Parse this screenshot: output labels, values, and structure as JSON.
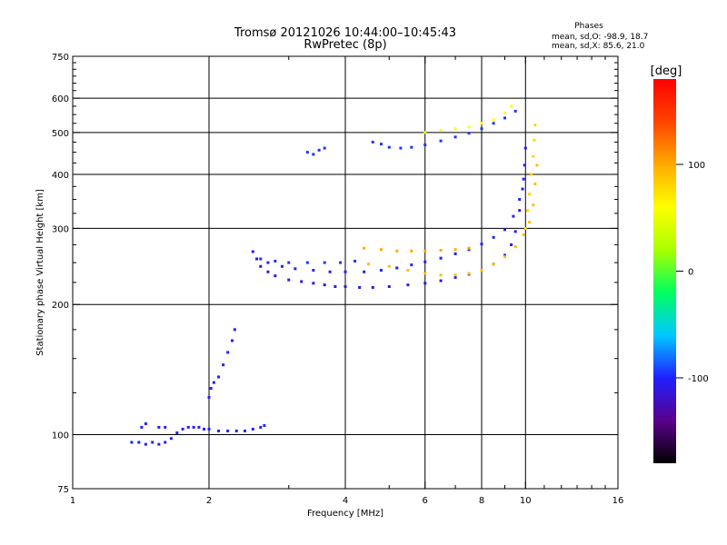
{
  "chart_data": {
    "type": "scatter",
    "title": "Tromsø 20121026 10:44:00–10:45:43",
    "subtitle": "RwPretec (8p)",
    "xlabel": "Frequency [MHz]",
    "ylabel": "Stationary phase Virtual Height [km]",
    "x_scale": "log",
    "y_scale": "log",
    "xlim": [
      1,
      16
    ],
    "ylim": [
      75,
      750
    ],
    "x_ticks": [
      1,
      2,
      4,
      6,
      8,
      10,
      16
    ],
    "x_tick_labels": [
      "1",
      "2",
      "4",
      "6",
      "8",
      "10",
      "16"
    ],
    "y_ticks": [
      75,
      100,
      200,
      300,
      400,
      500,
      600,
      750
    ],
    "y_tick_labels": [
      "75",
      "100",
      "200",
      "300",
      "400",
      "500",
      "600",
      "750"
    ],
    "grid": true,
    "grid_x": [
      2,
      4,
      6,
      8,
      10
    ],
    "grid_y": [
      100,
      200,
      300,
      400,
      500,
      600
    ],
    "phase_info": {
      "heading": "Phases",
      "line_o": "mean, sd,O: -98.9, 18.7",
      "line_x": "mean, sd,X:  85.6, 21.0"
    },
    "colorbar": {
      "label": "[deg]",
      "min": -180,
      "max": 180,
      "ticks": [
        100,
        0,
        -100
      ],
      "tick_labels": [
        "100",
        "0",
        "-100"
      ],
      "colormap": [
        "#000000",
        "#5a008c",
        "#2020ff",
        "#00c8ff",
        "#00ff60",
        "#aaff00",
        "#ffff00",
        "#ffaa00",
        "#ff4400",
        "#ff0000"
      ]
    },
    "series": [
      {
        "phase": -100,
        "points": [
          [
            1.35,
            96
          ],
          [
            1.4,
            96
          ],
          [
            1.45,
            95
          ],
          [
            1.5,
            96
          ],
          [
            1.55,
            95
          ],
          [
            1.6,
            96
          ],
          [
            1.65,
            98
          ],
          [
            1.7,
            101
          ],
          [
            1.75,
            103
          ],
          [
            1.8,
            104
          ],
          [
            1.85,
            104
          ],
          [
            1.9,
            104
          ],
          [
            1.95,
            103
          ],
          [
            2.0,
            103
          ],
          [
            2.1,
            102
          ],
          [
            2.2,
            102
          ],
          [
            2.3,
            102
          ],
          [
            2.4,
            102
          ],
          [
            2.5,
            103
          ],
          [
            2.6,
            104
          ],
          [
            2.65,
            105
          ],
          [
            1.42,
            104
          ],
          [
            1.45,
            106
          ],
          [
            1.55,
            104
          ],
          [
            1.6,
            104
          ]
        ]
      },
      {
        "phase": -100,
        "points": [
          [
            2.0,
            122
          ],
          [
            2.02,
            128
          ],
          [
            2.05,
            132
          ],
          [
            2.1,
            136
          ],
          [
            2.15,
            145
          ],
          [
            2.2,
            155
          ],
          [
            2.25,
            165
          ],
          [
            2.28,
            175
          ]
        ]
      },
      {
        "phase": -110,
        "points": [
          [
            2.5,
            265
          ],
          [
            2.55,
            255
          ],
          [
            2.6,
            245
          ],
          [
            2.7,
            238
          ],
          [
            2.8,
            233
          ],
          [
            3.0,
            228
          ],
          [
            3.2,
            226
          ],
          [
            3.4,
            224
          ],
          [
            3.6,
            222
          ],
          [
            3.8,
            220
          ],
          [
            4.0,
            220
          ],
          [
            4.3,
            219
          ],
          [
            4.6,
            219
          ],
          [
            5.0,
            220
          ],
          [
            5.5,
            222
          ],
          [
            6.0,
            224
          ],
          [
            6.5,
            227
          ],
          [
            7.0,
            231
          ],
          [
            7.5,
            235
          ],
          [
            8.0,
            240
          ],
          [
            8.5,
            248
          ],
          [
            9.0,
            260
          ],
          [
            9.3,
            275
          ],
          [
            9.5,
            295
          ],
          [
            9.7,
            330
          ],
          [
            9.85,
            370
          ],
          [
            9.95,
            420
          ],
          [
            10.0,
            460
          ]
        ]
      },
      {
        "phase": -100,
        "points": [
          [
            2.7,
            250
          ],
          [
            2.9,
            245
          ],
          [
            3.1,
            242
          ],
          [
            3.4,
            240
          ],
          [
            3.7,
            238
          ],
          [
            4.0,
            238
          ],
          [
            4.4,
            238
          ],
          [
            4.8,
            240
          ],
          [
            5.2,
            243
          ],
          [
            5.6,
            247
          ],
          [
            6.0,
            251
          ],
          [
            6.5,
            256
          ],
          [
            7.0,
            262
          ],
          [
            7.5,
            268
          ],
          [
            8.0,
            276
          ],
          [
            8.5,
            286
          ],
          [
            9.0,
            298
          ],
          [
            9.4,
            320
          ],
          [
            9.7,
            350
          ],
          [
            9.9,
            390
          ]
        ]
      },
      {
        "phase": -95,
        "points": [
          [
            2.6,
            255
          ],
          [
            2.8,
            252
          ],
          [
            3.0,
            250
          ],
          [
            3.3,
            250
          ],
          [
            3.6,
            250
          ],
          [
            3.9,
            250
          ],
          [
            4.2,
            252
          ]
        ]
      },
      {
        "phase": 100,
        "points": [
          [
            4.4,
            270
          ],
          [
            4.8,
            268
          ],
          [
            5.2,
            266
          ],
          [
            5.6,
            266
          ],
          [
            6.0,
            266
          ],
          [
            6.5,
            267
          ],
          [
            7.0,
            268
          ],
          [
            7.5,
            270
          ]
        ]
      },
      {
        "phase": 90,
        "points": [
          [
            4.5,
            248
          ],
          [
            5.0,
            245
          ],
          [
            5.5,
            240
          ],
          [
            6.0,
            236
          ],
          [
            6.5,
            234
          ],
          [
            7.0,
            234
          ],
          [
            7.5,
            236
          ],
          [
            8.0,
            240
          ],
          [
            8.5,
            248
          ],
          [
            9.0,
            258
          ],
          [
            9.5,
            272
          ],
          [
            9.9,
            290
          ],
          [
            10.2,
            310
          ],
          [
            10.4,
            340
          ],
          [
            10.5,
            380
          ],
          [
            10.6,
            420
          ]
        ]
      },
      {
        "phase": 80,
        "points": [
          [
            10.0,
            300
          ],
          [
            10.1,
            330
          ],
          [
            10.2,
            360
          ],
          [
            10.3,
            400
          ],
          [
            10.4,
            440
          ],
          [
            10.45,
            480
          ],
          [
            10.5,
            520
          ]
        ]
      },
      {
        "phase": -95,
        "points": [
          [
            3.3,
            450
          ],
          [
            3.4,
            445
          ],
          [
            3.5,
            455
          ],
          [
            3.6,
            460
          ],
          [
            4.6,
            475
          ],
          [
            4.8,
            470
          ],
          [
            5.0,
            462
          ],
          [
            5.3,
            460
          ],
          [
            5.6,
            462
          ],
          [
            6.0,
            468
          ],
          [
            6.5,
            478
          ],
          [
            7.0,
            488
          ],
          [
            7.5,
            498
          ],
          [
            8.0,
            510
          ],
          [
            8.5,
            525
          ],
          [
            9.0,
            540
          ],
          [
            9.5,
            560
          ]
        ]
      },
      {
        "phase": 60,
        "points": [
          [
            6.0,
            500
          ],
          [
            6.5,
            505
          ],
          [
            7.0,
            510
          ],
          [
            7.5,
            515
          ],
          [
            8.0,
            525
          ],
          [
            8.5,
            535
          ],
          [
            9.0,
            555
          ],
          [
            9.3,
            575
          ]
        ]
      }
    ]
  }
}
